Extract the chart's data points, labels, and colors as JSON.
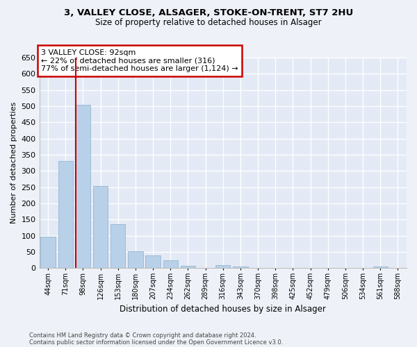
{
  "title_line1": "3, VALLEY CLOSE, ALSAGER, STOKE-ON-TRENT, ST7 2HU",
  "title_line2": "Size of property relative to detached houses in Alsager",
  "xlabel": "Distribution of detached houses by size in Alsager",
  "ylabel": "Number of detached properties",
  "categories": [
    "44sqm",
    "71sqm",
    "98sqm",
    "126sqm",
    "153sqm",
    "180sqm",
    "207sqm",
    "234sqm",
    "262sqm",
    "289sqm",
    "316sqm",
    "343sqm",
    "370sqm",
    "398sqm",
    "425sqm",
    "452sqm",
    "479sqm",
    "506sqm",
    "534sqm",
    "561sqm",
    "588sqm"
  ],
  "values": [
    97,
    330,
    504,
    253,
    136,
    52,
    39,
    24,
    8,
    1,
    10,
    5,
    1,
    1,
    0,
    0,
    0,
    0,
    0,
    5,
    0
  ],
  "bar_color": "#b8d0e8",
  "bar_edge_color": "#8aafcc",
  "vline_color": "#cc0000",
  "vline_index": 2,
  "annotation_text": "3 VALLEY CLOSE: 92sqm\n← 22% of detached houses are smaller (316)\n77% of semi-detached houses are larger (1,124) →",
  "ylim_max": 650,
  "ytick_step": 50,
  "footnote1": "Contains HM Land Registry data © Crown copyright and database right 2024.",
  "footnote2": "Contains public sector information licensed under the Open Government Licence v3.0.",
  "bg_color": "#eef2f8",
  "plot_bg_color": "#e4eaf5"
}
